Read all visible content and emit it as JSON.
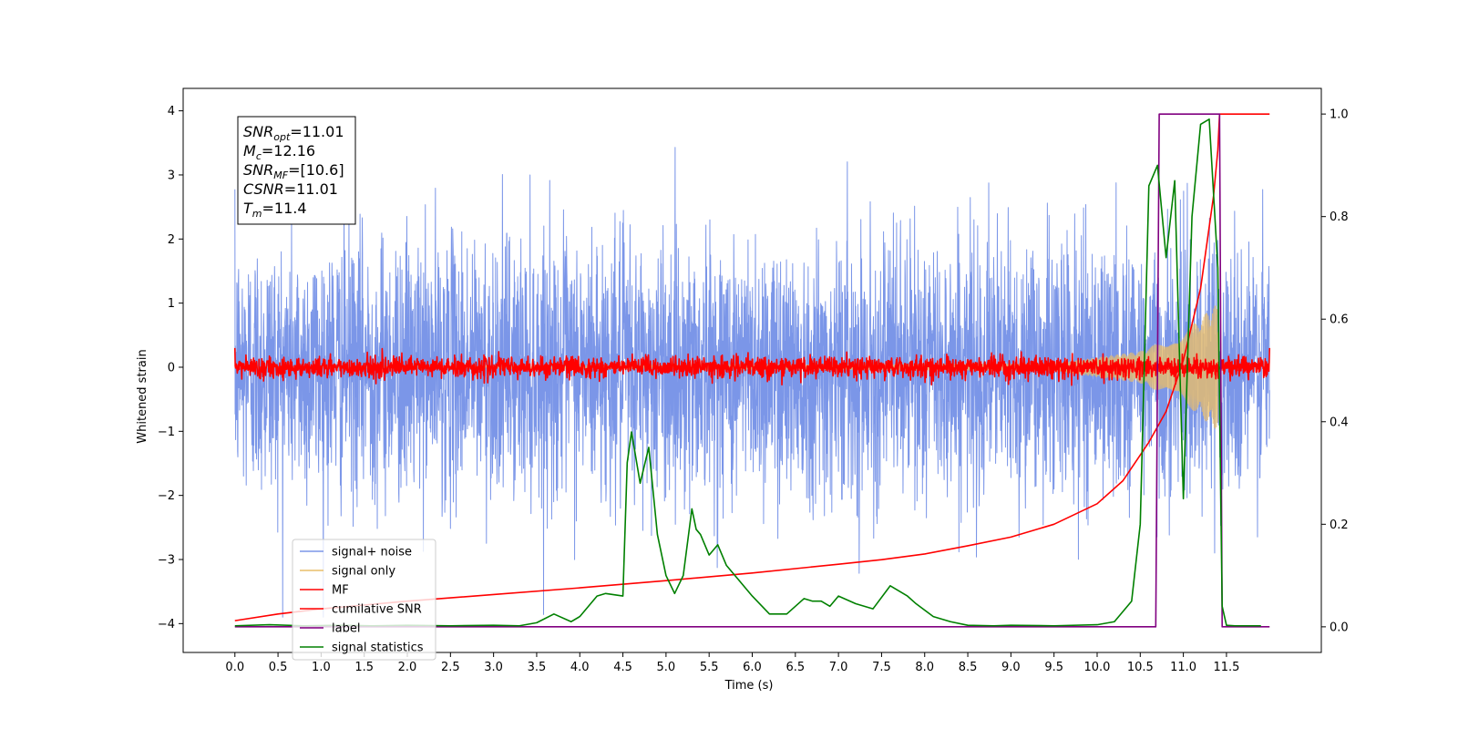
{
  "chart_data": {
    "type": "line",
    "xlabel": "Time (s)",
    "ylabel": "Whitened strain",
    "xlim": [
      -0.6,
      12.6
    ],
    "ylim": [
      -4.45,
      4.35
    ],
    "y2lim": [
      -0.05,
      1.05
    ],
    "x_ticks": [
      "0.0",
      "0.5",
      "1.0",
      "1.5",
      "2.0",
      "2.5",
      "3.0",
      "3.5",
      "4.0",
      "4.5",
      "5.0",
      "5.5",
      "6.0",
      "6.5",
      "7.0",
      "7.5",
      "8.0",
      "8.5",
      "9.0",
      "9.5",
      "10.0",
      "10.5",
      "11.0",
      "11.5"
    ],
    "y_ticks": [
      "−4",
      "−3",
      "−2",
      "−1",
      "0",
      "1",
      "2",
      "3",
      "4"
    ],
    "y2_ticks": [
      "0.0",
      "0.2",
      "0.4",
      "0.6",
      "0.8",
      "1.0"
    ],
    "annotation": [
      {
        "main": "SNR",
        "sub": "opt",
        "rest": "=11.01"
      },
      {
        "main": "M",
        "sub": "c",
        "rest": "=12.16"
      },
      {
        "main": "SNR",
        "sub": "MF",
        "rest": "=[10.6]"
      },
      {
        "main": "CSNR",
        "sub": "",
        "rest": "=11.01"
      },
      {
        "main": "T",
        "sub": "m",
        "rest": "=11.4"
      }
    ],
    "legend_position": "lower-left",
    "series": [
      {
        "name": "signal+ noise",
        "color": "#7b96e8",
        "axis": "left",
        "kind": "noise",
        "x_range": [
          0.0,
          12.0
        ],
        "amplitude_std": 1.0
      },
      {
        "name": "signal only",
        "color": "#e8bd6a",
        "axis": "left",
        "kind": "chirp",
        "x_range": [
          0.0,
          11.4
        ],
        "envelope": [
          [
            0.0,
            0.0
          ],
          [
            9.5,
            0.06
          ],
          [
            10.5,
            0.25
          ],
          [
            11.0,
            0.55
          ],
          [
            11.4,
            1.0
          ]
        ]
      },
      {
        "name": "MF",
        "color": "#ff0000",
        "axis": "left",
        "kind": "noise",
        "x_range": [
          0.0,
          12.0
        ],
        "amplitude_std": 0.08
      },
      {
        "name": "cumilative SNR",
        "color": "#ff0000",
        "axis": "right",
        "kind": "line",
        "x": [
          0.0,
          0.5,
          1.0,
          2.0,
          3.0,
          4.0,
          5.0,
          6.0,
          7.0,
          7.5,
          8.0,
          8.5,
          9.0,
          9.5,
          10.0,
          10.3,
          10.6,
          10.8,
          11.0,
          11.2,
          11.35,
          11.4,
          11.42,
          12.0
        ],
        "y": [
          0.012,
          0.025,
          0.035,
          0.05,
          0.063,
          0.076,
          0.09,
          0.105,
          0.122,
          0.131,
          0.142,
          0.158,
          0.175,
          0.2,
          0.24,
          0.285,
          0.36,
          0.42,
          0.52,
          0.66,
          0.84,
          0.93,
          1.0,
          1.0
        ]
      },
      {
        "name": "label",
        "color": "#800080",
        "axis": "right",
        "kind": "line",
        "x": [
          0.0,
          10.68,
          10.72,
          11.42,
          11.45,
          12.0
        ],
        "y": [
          0.0,
          0.0,
          1.0,
          1.0,
          0.0,
          0.0
        ]
      },
      {
        "name": "signal statistics",
        "color": "#008000",
        "axis": "right",
        "kind": "line",
        "x": [
          0.0,
          0.4,
          0.8,
          1.2,
          1.6,
          2.0,
          2.5,
          3.0,
          3.3,
          3.5,
          3.7,
          3.9,
          4.0,
          4.2,
          4.3,
          4.5,
          4.55,
          4.6,
          4.7,
          4.8,
          4.9,
          5.0,
          5.1,
          5.2,
          5.3,
          5.35,
          5.4,
          5.5,
          5.6,
          5.7,
          5.8,
          5.9,
          6.0,
          6.2,
          6.4,
          6.6,
          6.7,
          6.8,
          6.9,
          7.0,
          7.2,
          7.4,
          7.6,
          7.8,
          7.9,
          8.1,
          8.3,
          8.5,
          8.8,
          9.0,
          9.5,
          10.0,
          10.2,
          10.4,
          10.5,
          10.6,
          10.7,
          10.8,
          10.9,
          11.0,
          11.1,
          11.2,
          11.3,
          11.4,
          11.45,
          11.5,
          11.6,
          11.9
        ],
        "y": [
          0.002,
          0.004,
          0.002,
          0.003,
          0.002,
          0.003,
          0.002,
          0.003,
          0.002,
          0.008,
          0.025,
          0.01,
          0.02,
          0.06,
          0.065,
          0.06,
          0.32,
          0.38,
          0.28,
          0.35,
          0.18,
          0.1,
          0.065,
          0.1,
          0.23,
          0.19,
          0.18,
          0.14,
          0.16,
          0.12,
          0.1,
          0.08,
          0.06,
          0.025,
          0.025,
          0.055,
          0.05,
          0.05,
          0.04,
          0.06,
          0.045,
          0.035,
          0.08,
          0.06,
          0.045,
          0.02,
          0.01,
          0.003,
          0.002,
          0.003,
          0.002,
          0.004,
          0.01,
          0.05,
          0.2,
          0.86,
          0.9,
          0.72,
          0.87,
          0.25,
          0.8,
          0.98,
          0.99,
          0.7,
          0.04,
          0.003,
          0.002,
          0.002
        ]
      }
    ]
  }
}
